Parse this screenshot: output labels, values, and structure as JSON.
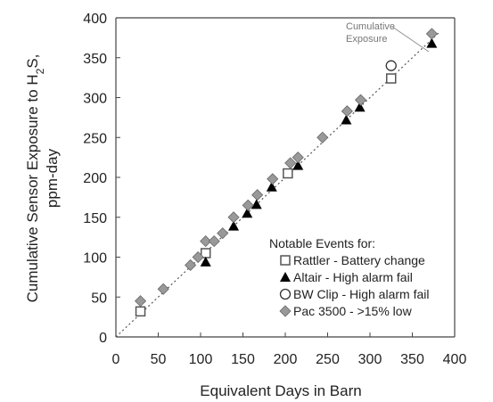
{
  "chart_data": {
    "type": "scatter",
    "xlabel": "Equivalent Days in Barn",
    "ylabel_line1": "Cumulative Sensor Exposure to H",
    "ylabel_sub": "2",
    "ylabel_after": "S,",
    "ylabel_line2": "ppm-day",
    "xlim": [
      0,
      400
    ],
    "ylim": [
      0,
      400
    ],
    "x_ticks": [
      0,
      50,
      100,
      150,
      200,
      250,
      300,
      350,
      400
    ],
    "y_ticks": [
      0,
      50,
      100,
      150,
      200,
      250,
      300,
      350,
      400
    ],
    "grid": false,
    "reference_line": {
      "label_line1": "Cumulative",
      "label_line2": "Exposure",
      "from": [
        0,
        0
      ],
      "to": [
        382,
        382
      ]
    },
    "legend_title": "Notable Events for:",
    "legend_position": "lower-right",
    "series": [
      {
        "name": "Rattler - Battery change",
        "marker": "square-open",
        "color": "#555555",
        "x": [
          29,
          106,
          203,
          325
        ],
        "y": [
          32,
          105,
          205,
          324
        ]
      },
      {
        "name": "Altair - High alarm fail",
        "marker": "triangle-filled",
        "color": "#000000",
        "x": [
          106,
          139,
          155,
          166,
          184,
          215,
          272,
          288,
          373
        ],
        "y": [
          94,
          139,
          155,
          166,
          188,
          215,
          272,
          288,
          368
        ]
      },
      {
        "name": "BW Clip - High alarm fail",
        "marker": "circle-open",
        "color": "#333333",
        "x": [
          325
        ],
        "y": [
          340
        ]
      },
      {
        "name": "Pac 3500 - >15% low",
        "marker": "diamond-filled",
        "color": "#999999",
        "x": [
          29,
          56,
          88,
          97,
          106,
          116,
          126,
          139,
          156,
          167,
          185,
          206,
          215,
          244,
          273,
          289,
          373
        ],
        "y": [
          45,
          60,
          90,
          100,
          120,
          120,
          130,
          150,
          165,
          178,
          198,
          218,
          225,
          250,
          283,
          297,
          380
        ]
      }
    ]
  }
}
